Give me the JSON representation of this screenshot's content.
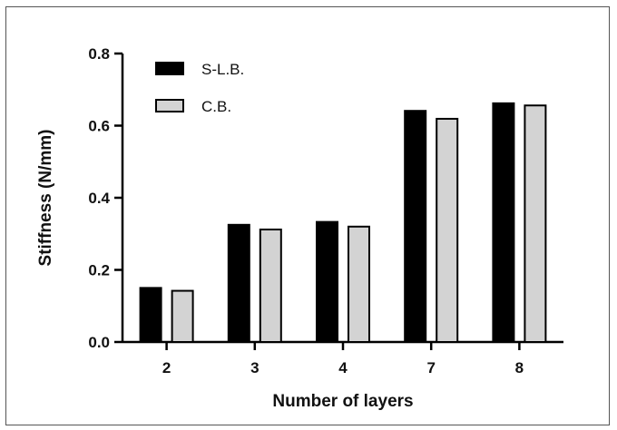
{
  "chart_data": {
    "type": "bar",
    "title": "",
    "xlabel": "Number of layers",
    "ylabel": "Stiffness (N/mm)",
    "categories": [
      "2",
      "3",
      "4",
      "7",
      "8"
    ],
    "ylim": [
      0,
      0.8
    ],
    "yticks": [
      "0.0",
      "0.2",
      "0.4",
      "0.6",
      "0.8"
    ],
    "series": [
      {
        "name": "S-L.B.",
        "values": [
          0.15,
          0.325,
          0.333,
          0.641,
          0.662
        ],
        "color": "#000000"
      },
      {
        "name": "C.B.",
        "values": [
          0.142,
          0.312,
          0.32,
          0.619,
          0.656
        ],
        "color": "#d3d3d3"
      }
    ],
    "legend_position": "top-left",
    "grid": false
  }
}
